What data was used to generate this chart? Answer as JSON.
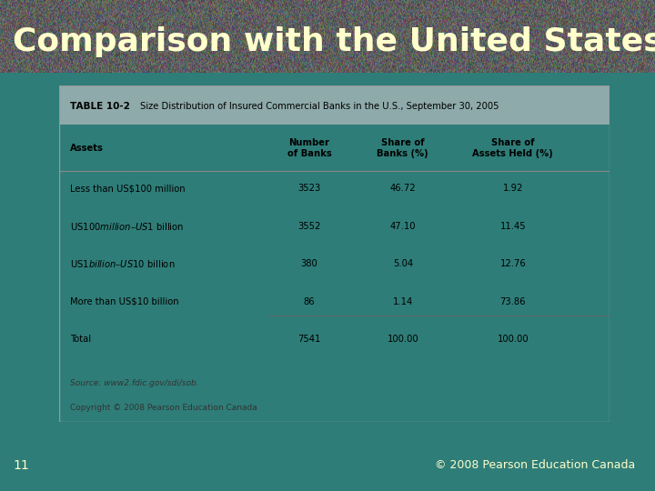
{
  "title": "Comparison with the United States",
  "title_color": "#FFFFCC",
  "bg_color": "#2E7D78",
  "table_title": "TABLE 10-2",
  "table_subtitle": "Size Distribution of Insured Commercial Banks in the U.S., September 30, 2005",
  "table_header_bg": "#8FAAAA",
  "table_body_bg": "#D8DCDC",
  "col_headers": [
    "Assets",
    "Number\nof Banks",
    "Share of\nBanks (%)",
    "Share of\nAssets Held (%)"
  ],
  "rows": [
    [
      "Less than US$100 million",
      "3523",
      "46.72",
      "1.92"
    ],
    [
      "US$100 million–US$1 billion",
      "3552",
      "47.10",
      "11.45"
    ],
    [
      "US$1 billion–US$10 billion",
      "380",
      "5.04",
      "12.76"
    ],
    [
      "More than US$10 billion",
      "86",
      "1.14",
      "73.86"
    ],
    [
      "Total",
      "7541",
      "100.00",
      "100.00"
    ]
  ],
  "source_text": "Source: www2.fdic.gov/sdi/sob.",
  "copyright_text": "Copyright © 2008 Pearson Education Canada",
  "footer_number": "11",
  "footer_copyright": "© 2008 Pearson Education Canada",
  "footer_color": "#FFFFCC"
}
